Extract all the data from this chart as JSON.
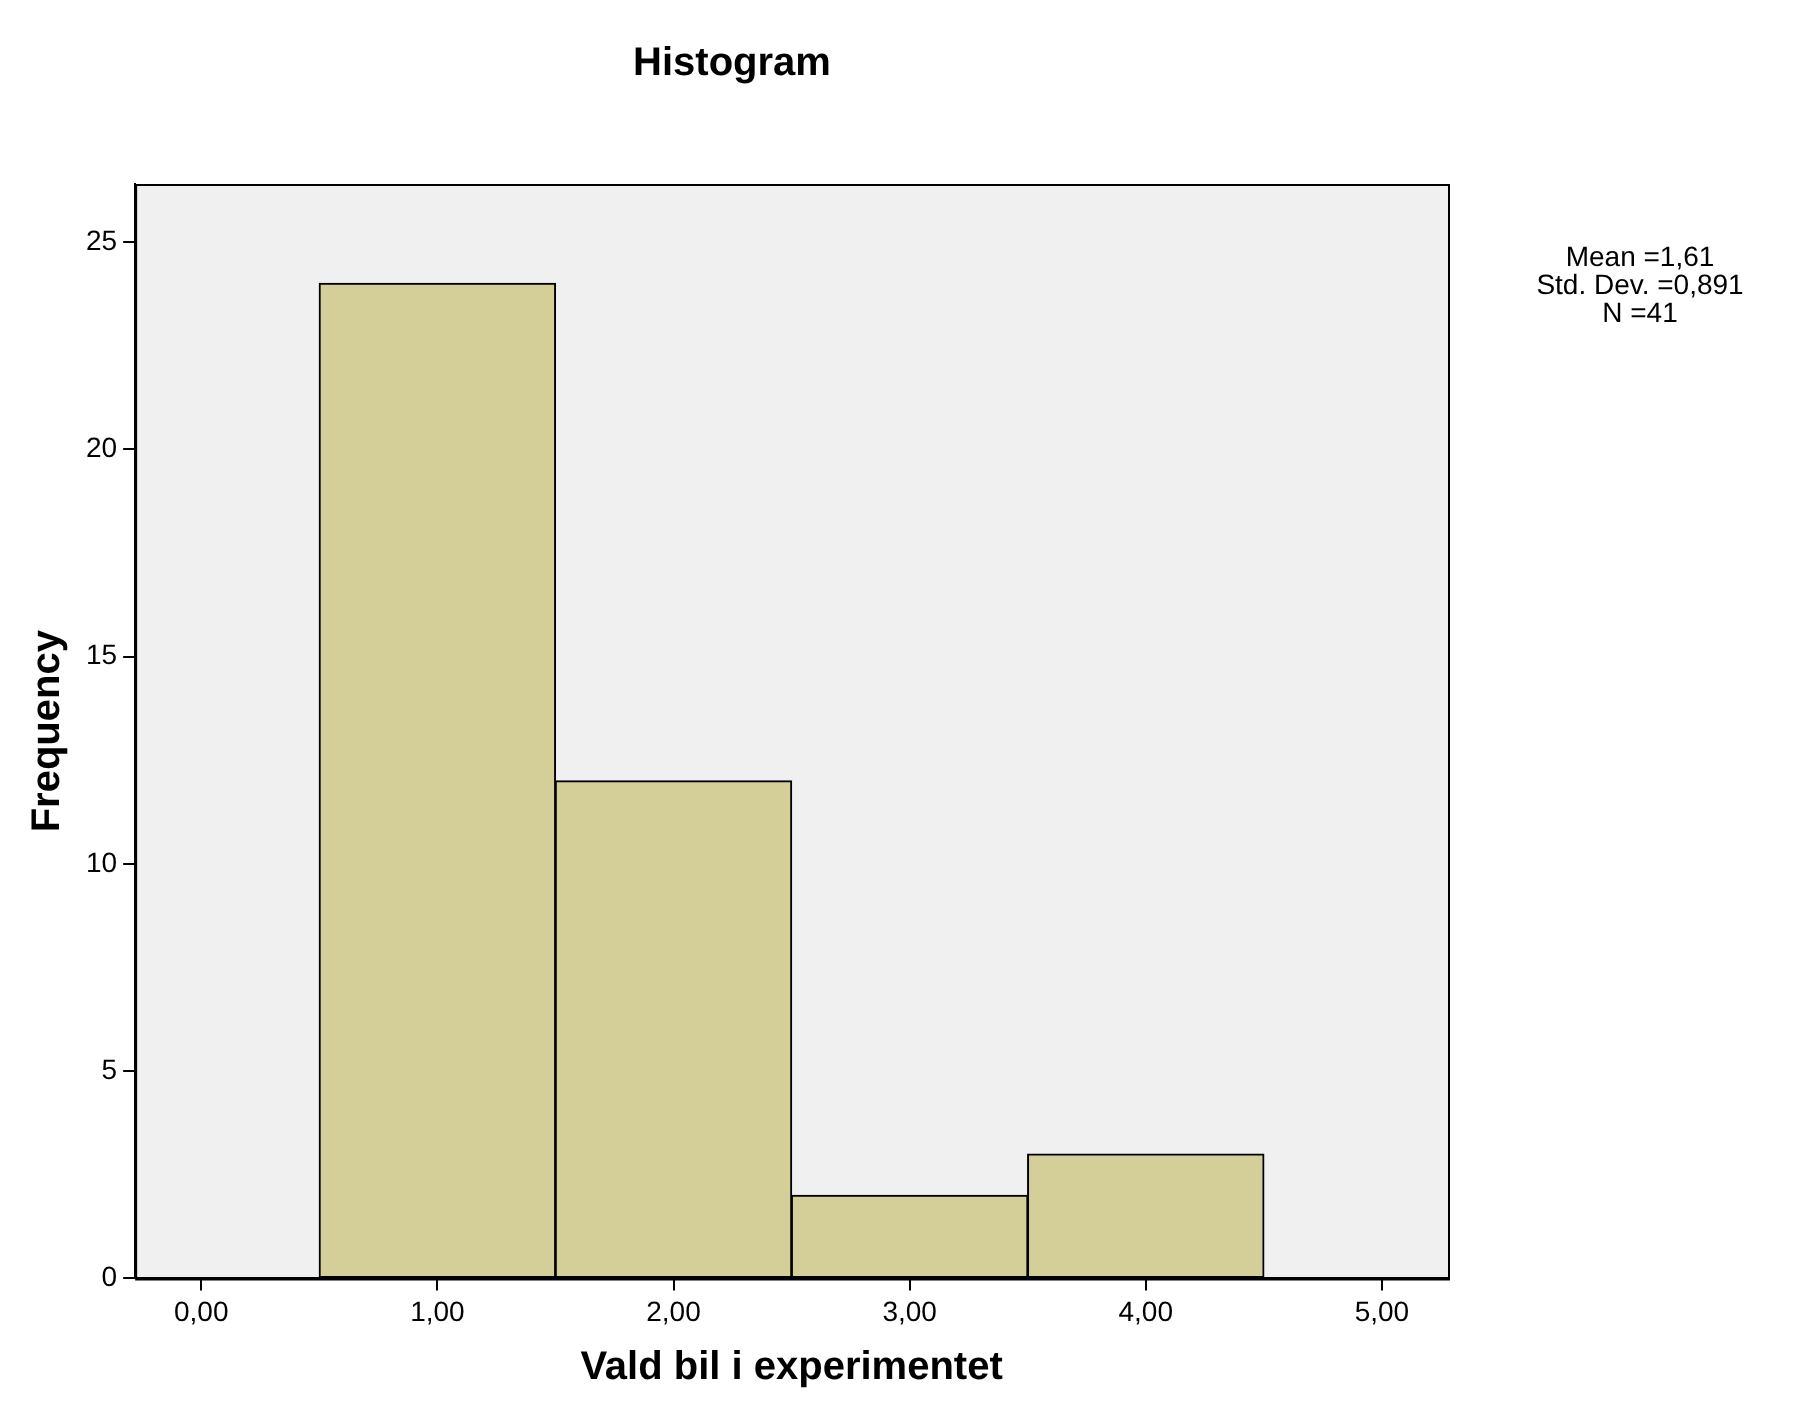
{
  "chart_data": {
    "type": "histogram",
    "title": "Histogram",
    "xlabel": "Vald bil i experimentet",
    "ylabel": "Frequency",
    "bins": [
      0.5,
      1.5,
      2.5,
      3.5,
      4.5
    ],
    "values": [
      24,
      12,
      2,
      3
    ],
    "color": "#d4cf98",
    "xlim": [
      -0.28,
      5.28
    ],
    "ylim": [
      0,
      26.4
    ],
    "xticks": [
      {
        "value": 0,
        "label": "0,00"
      },
      {
        "value": 1,
        "label": "1,00"
      },
      {
        "value": 2,
        "label": "2,00"
      },
      {
        "value": 3,
        "label": "3,00"
      },
      {
        "value": 4,
        "label": "4,00"
      },
      {
        "value": 5,
        "label": "5,00"
      }
    ],
    "yticks": [
      0,
      5,
      10,
      15,
      20,
      25
    ],
    "annotations": [
      "Mean =1,61",
      "Std. Dev. =0,891",
      "N =41"
    ],
    "grid": false,
    "legend": false
  }
}
